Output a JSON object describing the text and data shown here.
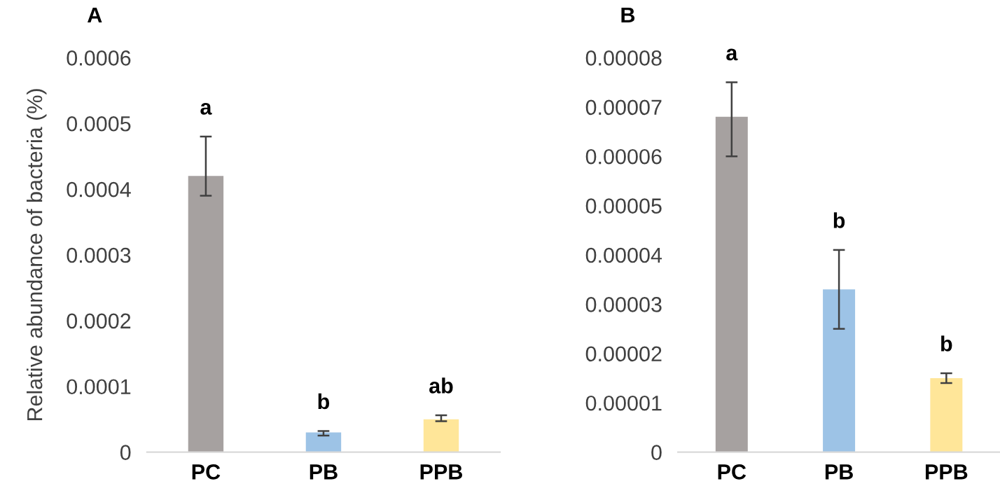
{
  "chart_data": [
    {
      "type": "bar",
      "title": "A",
      "ylabel": "Relative abundance of bacteria (%)",
      "categories": [
        "PC",
        "PB",
        "PPB"
      ],
      "values": [
        0.00042,
        3e-05,
        5e-05
      ],
      "colors": [
        "#a6a1a0",
        "#9dc3e6",
        "#ffe699"
      ],
      "errors": [
        [
          0.00039,
          0.00048
        ],
        [
          2.5e-05,
          3.2e-05
        ],
        [
          4.7e-05,
          5.6e-05
        ]
      ],
      "ylim": [
        0,
        0.0006
      ],
      "yticks": [
        {
          "value": 0,
          "label": "0"
        },
        {
          "value": 0.0001,
          "label": "0.0001"
        },
        {
          "value": 0.0002,
          "label": "0.0002"
        },
        {
          "value": 0.0003,
          "label": "0.0003"
        },
        {
          "value": 0.0004,
          "label": "0.0004"
        },
        {
          "value": 0.0005,
          "label": "0.0005"
        },
        {
          "value": 0.0006,
          "label": "0.0006"
        }
      ],
      "annotations": [
        "a",
        "b",
        "ab"
      ]
    },
    {
      "type": "bar",
      "title": "B",
      "categories": [
        "PC",
        "PB",
        "PPB"
      ],
      "values": [
        6.8e-05,
        3.3e-05,
        1.5e-05
      ],
      "colors": [
        "#a6a1a0",
        "#9dc3e6",
        "#ffe699"
      ],
      "errors": [
        [
          6e-05,
          7.5e-05
        ],
        [
          2.5e-05,
          4.1e-05
        ],
        [
          1.4e-05,
          1.6e-05
        ]
      ],
      "ylim": [
        0,
        8e-05
      ],
      "yticks": [
        {
          "value": 0,
          "label": "0"
        },
        {
          "value": 1e-05,
          "label": "0.00001"
        },
        {
          "value": 2e-05,
          "label": "0.00002"
        },
        {
          "value": 3e-05,
          "label": "0.00003"
        },
        {
          "value": 4e-05,
          "label": "0.00004"
        },
        {
          "value": 5e-05,
          "label": "0.00005"
        },
        {
          "value": 6e-05,
          "label": "0.00006"
        },
        {
          "value": 7e-05,
          "label": "0.00007"
        },
        {
          "value": 8e-05,
          "label": "0.00008"
        }
      ],
      "annotations": [
        "a",
        "b",
        "b"
      ]
    }
  ]
}
